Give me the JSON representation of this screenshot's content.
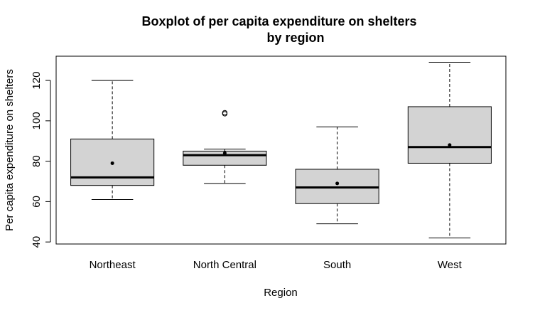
{
  "chart_data": {
    "type": "boxplot",
    "title": "Boxplot of per capita expenditure on shelters",
    "subtitle": "by region",
    "xlabel": "Region",
    "ylabel": "Per capita expenditure on shelters",
    "ylim": [
      39,
      132
    ],
    "yticks": [
      40,
      60,
      80,
      100,
      120
    ],
    "box_color": "#d3d3d3",
    "grid": false,
    "categories": [
      "Northeast",
      "North Central",
      "South",
      "West"
    ],
    "boxes": [
      {
        "category": "Northeast",
        "whisker_low": 61,
        "q1": 68,
        "median": 72,
        "q3": 91,
        "whisker_high": 120,
        "mean": 79,
        "outliers": []
      },
      {
        "category": "North Central",
        "whisker_low": 69,
        "q1": 78,
        "median": 83,
        "q3": 85,
        "whisker_high": 86,
        "mean": 84,
        "outliers": [
          103.5,
          104
        ]
      },
      {
        "category": "South",
        "whisker_low": 49,
        "q1": 59,
        "median": 67,
        "q3": 76,
        "whisker_high": 97,
        "mean": 69,
        "outliers": []
      },
      {
        "category": "West",
        "whisker_low": 42,
        "q1": 79,
        "median": 87,
        "q3": 107,
        "whisker_high": 129,
        "mean": 88,
        "outliers": []
      }
    ]
  }
}
